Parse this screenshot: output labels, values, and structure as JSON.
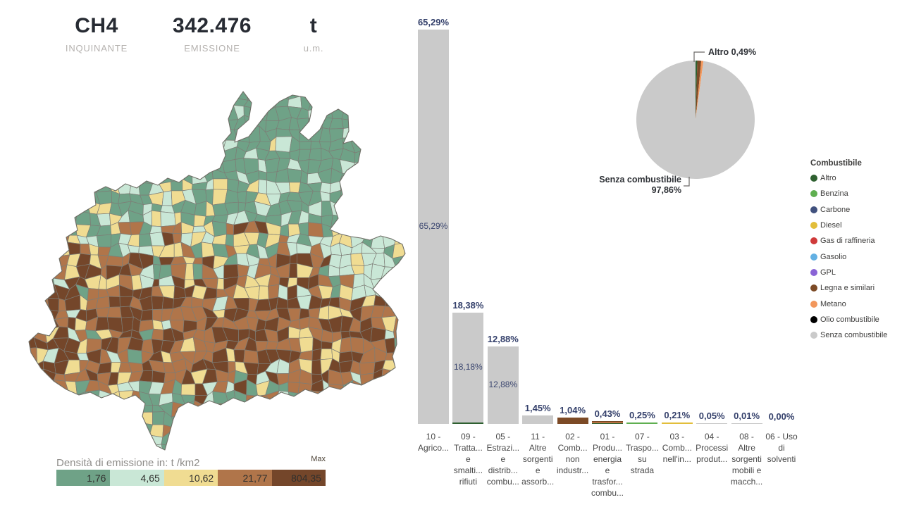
{
  "kpi": {
    "pollutant_label": "INQUINANTE",
    "pollutant": "CH4",
    "emission_label": "EMISSIONE",
    "emission": "342.476",
    "unit_label": "u.m.",
    "unit": "t"
  },
  "map": {
    "legend_title": "Densità di emissione in:  t /km2",
    "max_label": "Max",
    "density_classes": [
      {
        "label": "1,76",
        "color": "#6FA287"
      },
      {
        "label": "4,65",
        "color": "#C9E7D6"
      },
      {
        "label": "10,62",
        "color": "#F0DC92"
      },
      {
        "label": "21,77",
        "color": "#B0754A"
      },
      {
        "label": "804,35",
        "color": "#74462A"
      }
    ]
  },
  "fuel_colors": {
    "altro": "#2E6030",
    "benzina": "#5FAF50",
    "carbone": "#41517E",
    "diesel": "#E2BE3B",
    "gas_di_raffineria": "#CF3A3A",
    "gasolio": "#63B0E3",
    "gpl": "#8A64D6",
    "legna": "#7C4A26",
    "metano": "#F2975C",
    "olio": "#000000",
    "senza": "#CACACA"
  },
  "fuel_legend": {
    "title": "Combustibile",
    "items": [
      {
        "label": "Altro",
        "color_key": "altro"
      },
      {
        "label": "Benzina",
        "color_key": "benzina"
      },
      {
        "label": "Carbone",
        "color_key": "carbone"
      },
      {
        "label": "Diesel",
        "color_key": "diesel"
      },
      {
        "label": "Gas di raffineria",
        "color_key": "gas_di_raffineria"
      },
      {
        "label": "Gasolio",
        "color_key": "gasolio"
      },
      {
        "label": "GPL",
        "color_key": "gpl"
      },
      {
        "label": "Legna e similari",
        "color_key": "legna"
      },
      {
        "label": "Metano",
        "color_key": "metano"
      },
      {
        "label": "Olio combustibile",
        "color_key": "olio"
      },
      {
        "label": "Senza combustibile",
        "color_key": "senza"
      }
    ]
  },
  "chart_data": [
    {
      "type": "bar",
      "title": "Emissioni per macrosettore (%)",
      "value_unit": "percent",
      "ylim": [
        0,
        66
      ],
      "categories": [
        [
          "10 -",
          "Agrico..."
        ],
        [
          "09 -",
          "Tratta...",
          "e",
          "smalti...",
          "rifiuti"
        ],
        [
          "05 -",
          "Estrazi...",
          "e",
          "distrib...",
          "combu..."
        ],
        [
          "11 -",
          "Altre",
          "sorgenti",
          "e",
          "assorb..."
        ],
        [
          "02 -",
          "Comb...",
          "non",
          "industr..."
        ],
        [
          "01 -",
          "Produ...",
          "energia",
          "e",
          "trasfor...",
          "combu..."
        ],
        [
          "07 -",
          "Traspo...",
          "su",
          "strada"
        ],
        [
          "03 -",
          "Comb...",
          "nell'in..."
        ],
        [
          "04 -",
          "Processi",
          "produt..."
        ],
        [
          "08 -",
          "Altre",
          "sorgenti",
          "mobili e",
          "macch..."
        ],
        [
          "06 - Uso",
          "di",
          "solventi"
        ]
      ],
      "bars": [
        {
          "total": 65.29,
          "total_label": "65,29%",
          "inner_label": "65,29%",
          "segments": [
            [
              "senza",
              65.29
            ]
          ]
        },
        {
          "total": 18.38,
          "total_label": "18,38%",
          "inner_label": "18,18%",
          "segments": [
            [
              "altro",
              0.2
            ],
            [
              "senza",
              18.18
            ]
          ]
        },
        {
          "total": 12.88,
          "total_label": "12,88%",
          "inner_label": "12,88%",
          "segments": [
            [
              "senza",
              12.88
            ]
          ]
        },
        {
          "total": 1.45,
          "total_label": "1,45%",
          "segments": [
            [
              "senza",
              1.45
            ]
          ]
        },
        {
          "total": 1.04,
          "total_label": "1,04%",
          "segments": [
            [
              "legna",
              1.04
            ]
          ]
        },
        {
          "total": 0.43,
          "total_label": "0,43%",
          "segments": [
            [
              "altro",
              0.08
            ],
            [
              "metano",
              0.17
            ],
            [
              "legna",
              0.18
            ]
          ]
        },
        {
          "total": 0.25,
          "total_label": "0,25%",
          "segments": [
            [
              "benzina",
              0.25
            ]
          ]
        },
        {
          "total": 0.21,
          "total_label": "0,21%",
          "segments": [
            [
              "diesel",
              0.21
            ]
          ]
        },
        {
          "total": 0.05,
          "total_label": "0,05%",
          "segments": [
            [
              "senza",
              0.05
            ]
          ]
        },
        {
          "total": 0.01,
          "total_label": "0,01%",
          "segments": [
            [
              "senza",
              0.01
            ]
          ]
        },
        {
          "total": 0.0,
          "total_label": "0,00%",
          "segments": []
        }
      ]
    },
    {
      "type": "pie",
      "title": "Emissioni per combustibile (%)",
      "slices": [
        {
          "label": "Altro",
          "pct": 0.49,
          "color_key": "altro"
        },
        {
          "label": "Legna e similari",
          "pct": 1.05,
          "color_key": "legna"
        },
        {
          "label": "Metano",
          "pct": 0.6,
          "color_key": "metano"
        },
        {
          "label": "Senza combustibile",
          "pct": 97.86,
          "color_key": "senza"
        }
      ],
      "callouts": {
        "altro": "Altro 0,49%",
        "senza_line1": "Senza combustibile",
        "senza_line2": "97,86%"
      }
    }
  ]
}
